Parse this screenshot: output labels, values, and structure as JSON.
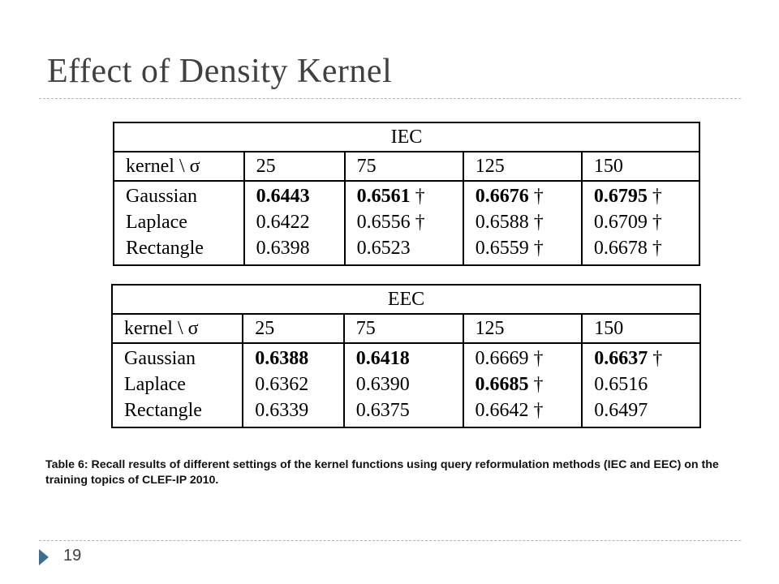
{
  "slide": {
    "title": "Effect of Density Kernel",
    "page_number": "19"
  },
  "tables": [
    {
      "caption": "IEC",
      "header": [
        "kernel \\ σ",
        "25",
        "75",
        "125",
        "150"
      ],
      "rows": [
        {
          "kernel": "Gaussian",
          "cells": [
            {
              "value": "0.6443",
              "bold": true,
              "dagger": false
            },
            {
              "value": "0.6561",
              "bold": true,
              "dagger": true
            },
            {
              "value": "0.6676",
              "bold": true,
              "dagger": true
            },
            {
              "value": "0.6795",
              "bold": true,
              "dagger": true
            }
          ]
        },
        {
          "kernel": "Laplace",
          "cells": [
            {
              "value": "0.6422",
              "bold": false,
              "dagger": false
            },
            {
              "value": "0.6556",
              "bold": false,
              "dagger": true
            },
            {
              "value": "0.6588",
              "bold": false,
              "dagger": true
            },
            {
              "value": "0.6709",
              "bold": false,
              "dagger": true
            }
          ]
        },
        {
          "kernel": "Rectangle",
          "cells": [
            {
              "value": "0.6398",
              "bold": false,
              "dagger": false
            },
            {
              "value": "0.6523",
              "bold": false,
              "dagger": false
            },
            {
              "value": "0.6559",
              "bold": false,
              "dagger": true
            },
            {
              "value": "0.6678",
              "bold": false,
              "dagger": true
            }
          ]
        }
      ]
    },
    {
      "caption": "EEC",
      "header": [
        "kernel \\ σ",
        "25",
        "75",
        "125",
        "150"
      ],
      "rows": [
        {
          "kernel": "Gaussian",
          "cells": [
            {
              "value": "0.6388",
              "bold": true,
              "dagger": false
            },
            {
              "value": "0.6418",
              "bold": true,
              "dagger": false
            },
            {
              "value": "0.6669",
              "bold": false,
              "dagger": true
            },
            {
              "value": "0.6637",
              "bold": true,
              "dagger": true
            }
          ]
        },
        {
          "kernel": "Laplace",
          "cells": [
            {
              "value": "0.6362",
              "bold": false,
              "dagger": false
            },
            {
              "value": "0.6390",
              "bold": false,
              "dagger": false
            },
            {
              "value": "0.6685",
              "bold": true,
              "dagger": true
            },
            {
              "value": "0.6516",
              "bold": false,
              "dagger": false
            }
          ]
        },
        {
          "kernel": "Rectangle",
          "cells": [
            {
              "value": "0.6339",
              "bold": false,
              "dagger": false
            },
            {
              "value": "0.6375",
              "bold": false,
              "dagger": false
            },
            {
              "value": "0.6642",
              "bold": false,
              "dagger": true
            },
            {
              "value": "0.6497",
              "bold": false,
              "dagger": false
            }
          ]
        }
      ]
    }
  ],
  "dagger_symbol": "†",
  "table_caption": "Table 6: Recall results of different settings of the kernel functions using query reformulation methods (IEC and EEC) on the training topics of CLEF-IP 2010.",
  "icons": {
    "bullet": "triangle-bullet-icon"
  },
  "colors": {
    "title": "#404040",
    "divider": "#9fb8c8",
    "bullet": "#3a6f8f"
  }
}
